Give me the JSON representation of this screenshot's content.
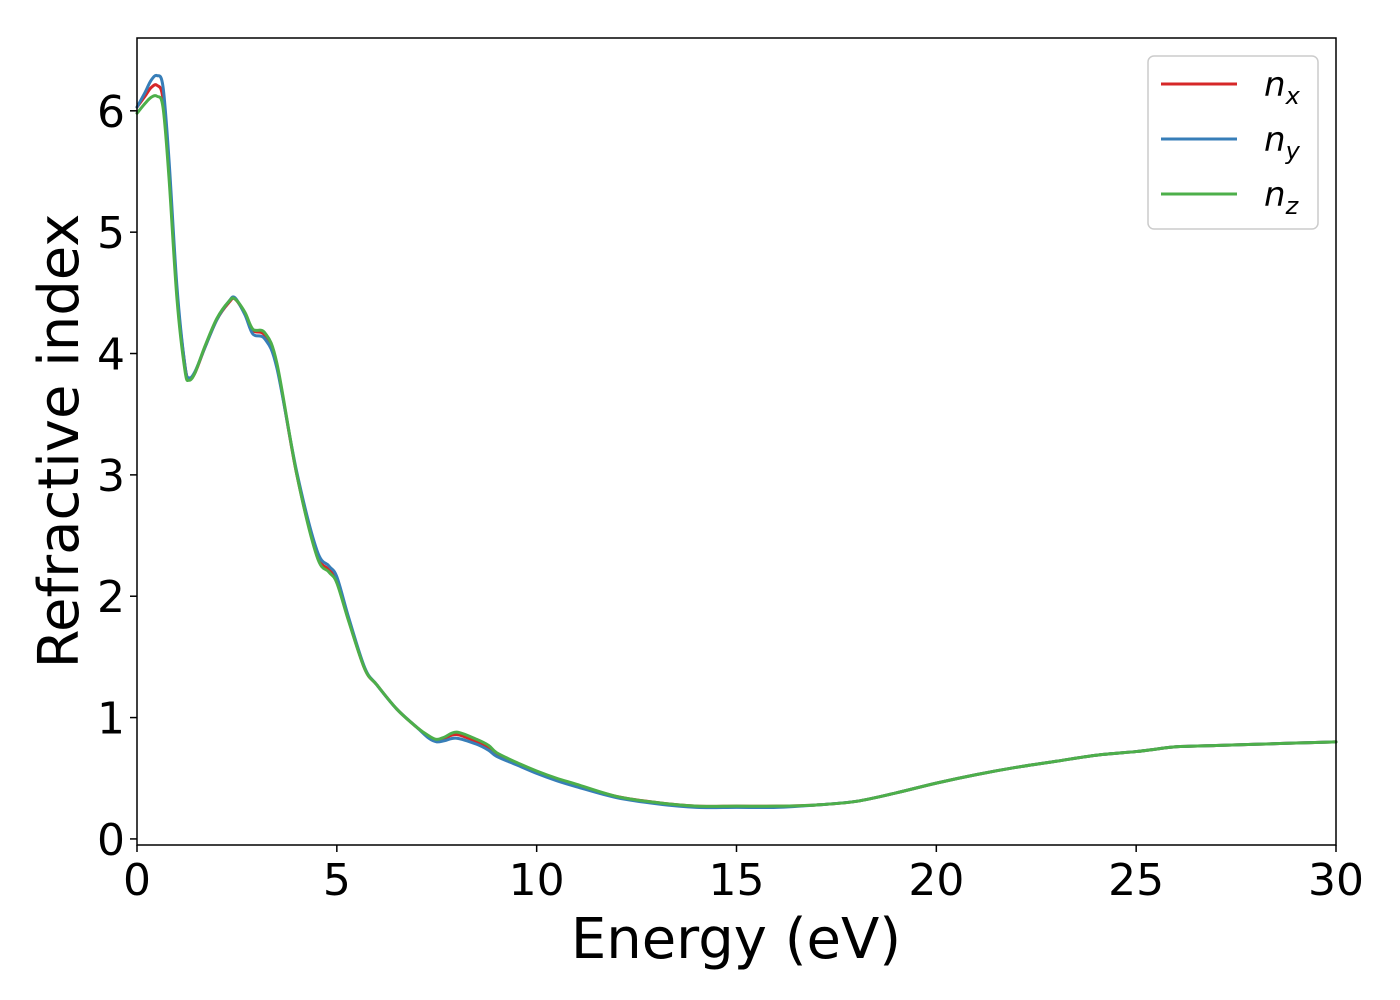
{
  "chart_data": {
    "type": "line",
    "title": "",
    "xlabel": "Energy (eV)",
    "ylabel": "Refractive index",
    "xlim": [
      0,
      30
    ],
    "ylim": [
      -0.05,
      6.6
    ],
    "xticks": [
      0,
      5,
      10,
      15,
      20,
      25,
      30
    ],
    "yticks": [
      0,
      1,
      2,
      3,
      4,
      5,
      6
    ],
    "grid": false,
    "legend_position": "top-right",
    "series": [
      {
        "name": "n_x",
        "label_main": "n",
        "label_sub": "x",
        "color": "#d62728",
        "x": [
          0,
          0.2,
          0.35,
          0.5,
          0.65,
          0.8,
          1.0,
          1.2,
          1.3,
          1.45,
          1.7,
          2.0,
          2.3,
          2.45,
          2.7,
          2.9,
          3.2,
          3.5,
          4.0,
          4.5,
          4.8,
          5.0,
          5.3,
          5.7,
          6.0,
          6.5,
          7.0,
          7.3,
          7.5,
          7.7,
          8.0,
          8.5,
          8.8,
          9.0,
          9.5,
          10,
          10.5,
          11,
          12,
          13,
          14,
          15,
          16,
          17,
          18,
          19,
          20,
          21,
          22,
          23,
          24,
          25,
          25.5,
          26,
          27,
          28,
          29,
          30
        ],
        "y": [
          6.03,
          6.12,
          6.19,
          6.21,
          6.1,
          5.5,
          4.5,
          3.9,
          3.79,
          3.84,
          4.05,
          4.28,
          4.42,
          4.45,
          4.33,
          4.19,
          4.15,
          3.9,
          3.0,
          2.35,
          2.22,
          2.13,
          1.8,
          1.4,
          1.27,
          1.07,
          0.92,
          0.84,
          0.81,
          0.83,
          0.86,
          0.8,
          0.75,
          0.7,
          0.62,
          0.55,
          0.49,
          0.44,
          0.35,
          0.3,
          0.27,
          0.27,
          0.27,
          0.28,
          0.31,
          0.38,
          0.46,
          0.53,
          0.59,
          0.64,
          0.69,
          0.72,
          0.74,
          0.76,
          0.77,
          0.78,
          0.79,
          0.8
        ]
      },
      {
        "name": "n_y",
        "label_main": "n",
        "label_sub": "y",
        "color": "#377eb8",
        "x": [
          0,
          0.2,
          0.35,
          0.5,
          0.65,
          0.8,
          1.0,
          1.2,
          1.3,
          1.45,
          1.7,
          2.0,
          2.3,
          2.45,
          2.7,
          2.9,
          3.2,
          3.5,
          4.0,
          4.5,
          4.8,
          5.0,
          5.3,
          5.7,
          6.0,
          6.5,
          7.0,
          7.3,
          7.5,
          7.7,
          8.0,
          8.5,
          8.8,
          9.0,
          9.5,
          10,
          10.5,
          11,
          12,
          13,
          14,
          15,
          16,
          17,
          18,
          19,
          20,
          21,
          22,
          23,
          24,
          25,
          25.5,
          26,
          27,
          28,
          29,
          30
        ],
        "y": [
          6.03,
          6.15,
          6.25,
          6.29,
          6.2,
          5.6,
          4.55,
          3.9,
          3.8,
          3.85,
          4.05,
          4.28,
          4.43,
          4.46,
          4.32,
          4.16,
          4.12,
          3.88,
          3.02,
          2.38,
          2.25,
          2.16,
          1.82,
          1.41,
          1.27,
          1.07,
          0.92,
          0.83,
          0.8,
          0.81,
          0.83,
          0.78,
          0.73,
          0.68,
          0.61,
          0.54,
          0.48,
          0.43,
          0.34,
          0.29,
          0.26,
          0.26,
          0.26,
          0.28,
          0.31,
          0.38,
          0.46,
          0.53,
          0.59,
          0.64,
          0.69,
          0.72,
          0.74,
          0.76,
          0.77,
          0.78,
          0.79,
          0.8
        ]
      },
      {
        "name": "n_z",
        "label_main": "n",
        "label_sub": "z",
        "color": "#4daf4a",
        "x": [
          0,
          0.2,
          0.35,
          0.5,
          0.65,
          0.8,
          1.0,
          1.2,
          1.3,
          1.45,
          1.7,
          2.0,
          2.3,
          2.45,
          2.7,
          2.9,
          3.2,
          3.5,
          4.0,
          4.5,
          4.8,
          5.0,
          5.3,
          5.7,
          6.0,
          6.5,
          7.0,
          7.3,
          7.5,
          7.7,
          8.0,
          8.5,
          8.8,
          9.0,
          9.5,
          10,
          10.5,
          11,
          12,
          13,
          14,
          15,
          16,
          17,
          18,
          19,
          20,
          21,
          22,
          23,
          24,
          25,
          25.5,
          26,
          27,
          28,
          29,
          30
        ],
        "y": [
          5.98,
          6.06,
          6.11,
          6.12,
          6.03,
          5.45,
          4.45,
          3.86,
          3.78,
          3.84,
          4.06,
          4.29,
          4.43,
          4.45,
          4.34,
          4.2,
          4.17,
          3.92,
          3.0,
          2.33,
          2.2,
          2.11,
          1.79,
          1.4,
          1.27,
          1.07,
          0.92,
          0.85,
          0.82,
          0.84,
          0.88,
          0.82,
          0.77,
          0.71,
          0.63,
          0.56,
          0.5,
          0.45,
          0.35,
          0.3,
          0.27,
          0.27,
          0.27,
          0.28,
          0.31,
          0.38,
          0.46,
          0.53,
          0.59,
          0.64,
          0.69,
          0.72,
          0.74,
          0.76,
          0.77,
          0.78,
          0.79,
          0.8
        ]
      }
    ]
  }
}
